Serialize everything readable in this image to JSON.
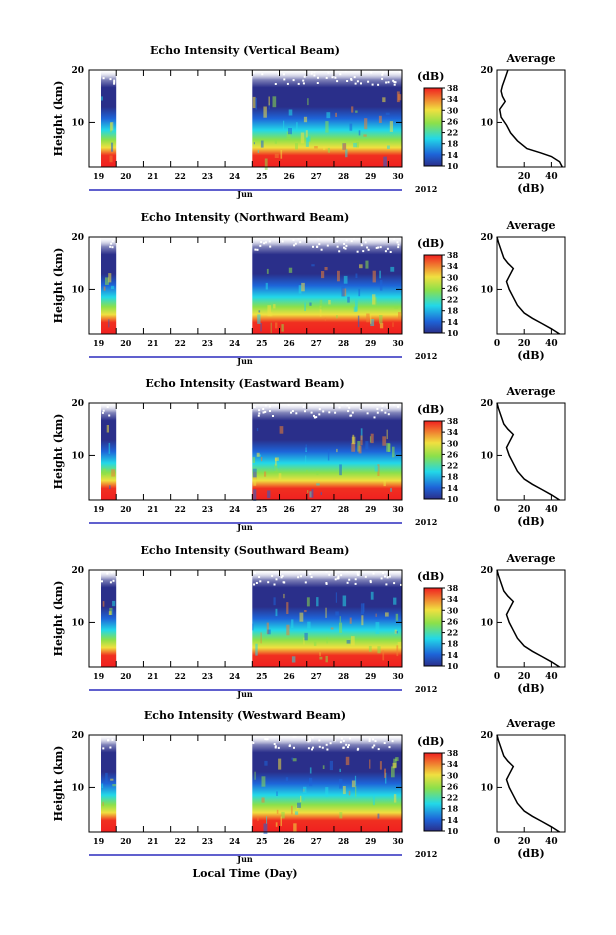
{
  "figure": {
    "xlabel": "Local Time (Day)",
    "ylabel": "Height (km)",
    "month": "Jun",
    "year": "2012",
    "colorbar_label": "(dB)",
    "colorbar_ticks": [
      "10",
      "14",
      "18",
      "22",
      "26",
      "30",
      "34",
      "38"
    ],
    "profile_title": "Average",
    "profile_xlabel": "(dB)",
    "day_labels": [
      "19",
      "20",
      "21",
      "22",
      "23",
      "24",
      "25",
      "26",
      "27",
      "28",
      "29",
      "30"
    ],
    "height_ticks": [
      "10",
      "20"
    ],
    "colors": {
      "background_low": "#2a2f8a",
      "blue": "#1e64d8",
      "cyan": "#22d8e8",
      "green": "#8ce04a",
      "yellow": "#f0e040",
      "orange": "#f08030",
      "red": "#f02020",
      "axis_blue": "#0000b0"
    }
  },
  "panels": [
    {
      "title": "Echo Intensity (Vertical Beam)",
      "profile_xticks": [
        "20",
        "40"
      ],
      "profile": [
        [
          48,
          1.5
        ],
        [
          46,
          2.5
        ],
        [
          40,
          3.5
        ],
        [
          32,
          4.2
        ],
        [
          22,
          5
        ],
        [
          15,
          6.5
        ],
        [
          10,
          8
        ],
        [
          7,
          9.5
        ],
        [
          3,
          11
        ],
        [
          2,
          12.5
        ],
        [
          6,
          14
        ],
        [
          4,
          15
        ],
        [
          3,
          16
        ],
        [
          4,
          17
        ],
        [
          6,
          18.5
        ],
        [
          8,
          20
        ]
      ]
    },
    {
      "title": "Echo Intensity (Northward Beam)",
      "profile_xticks": [
        "0",
        "20",
        "40"
      ],
      "profile": [
        [
          46,
          1.5
        ],
        [
          40,
          2.5
        ],
        [
          33,
          3.5
        ],
        [
          26,
          4.5
        ],
        [
          20,
          5.5
        ],
        [
          15,
          7
        ],
        [
          12,
          8.5
        ],
        [
          9,
          10
        ],
        [
          7,
          11.5
        ],
        [
          9,
          12.5
        ],
        [
          12,
          14
        ],
        [
          8,
          15
        ],
        [
          5,
          16
        ],
        [
          3,
          17.5
        ],
        [
          1,
          19
        ],
        [
          0,
          20
        ]
      ]
    },
    {
      "title": "Echo Intensity (Eastward Beam)",
      "profile_xticks": [
        "0",
        "20",
        "40"
      ],
      "profile": [
        [
          46,
          1.5
        ],
        [
          40,
          2.5
        ],
        [
          33,
          3.5
        ],
        [
          26,
          4.5
        ],
        [
          20,
          5.5
        ],
        [
          15,
          7
        ],
        [
          12,
          8.5
        ],
        [
          9,
          10
        ],
        [
          7,
          11.5
        ],
        [
          9,
          12.5
        ],
        [
          12,
          14
        ],
        [
          8,
          15
        ],
        [
          5,
          16
        ],
        [
          3,
          17.5
        ],
        [
          1,
          19
        ],
        [
          0,
          20
        ]
      ]
    },
    {
      "title": "Echo Intensity (Southward Beam)",
      "profile_xticks": [
        "0",
        "20",
        "40"
      ],
      "profile": [
        [
          46,
          1.5
        ],
        [
          40,
          2.5
        ],
        [
          33,
          3.5
        ],
        [
          26,
          4.5
        ],
        [
          20,
          5.5
        ],
        [
          15,
          7
        ],
        [
          12,
          8.5
        ],
        [
          9,
          10
        ],
        [
          7,
          11.5
        ],
        [
          9,
          12.5
        ],
        [
          12,
          14
        ],
        [
          8,
          15
        ],
        [
          5,
          16
        ],
        [
          3,
          17.5
        ],
        [
          1,
          19
        ],
        [
          0,
          20
        ]
      ]
    },
    {
      "title": "Echo Intensity (Westward Beam)",
      "profile_xticks": [
        "0",
        "20",
        "40"
      ],
      "profile": [
        [
          46,
          1.5
        ],
        [
          40,
          2.5
        ],
        [
          33,
          3.5
        ],
        [
          26,
          4.5
        ],
        [
          20,
          5.5
        ],
        [
          15,
          7
        ],
        [
          12,
          8.5
        ],
        [
          9,
          10
        ],
        [
          7,
          11.5
        ],
        [
          9,
          12.5
        ],
        [
          12,
          14
        ],
        [
          8,
          15
        ],
        [
          5,
          16
        ],
        [
          3,
          17.5
        ],
        [
          1,
          19
        ],
        [
          0,
          20
        ]
      ]
    }
  ],
  "chart_data": {
    "type": "heatmap",
    "panels": 5,
    "x_range_days": [
      19,
      30.5
    ],
    "y_range_km": [
      1.5,
      20
    ],
    "color_range_db": [
      10,
      38
    ],
    "data_gaps": [
      [
        20,
        25
      ]
    ]
  }
}
